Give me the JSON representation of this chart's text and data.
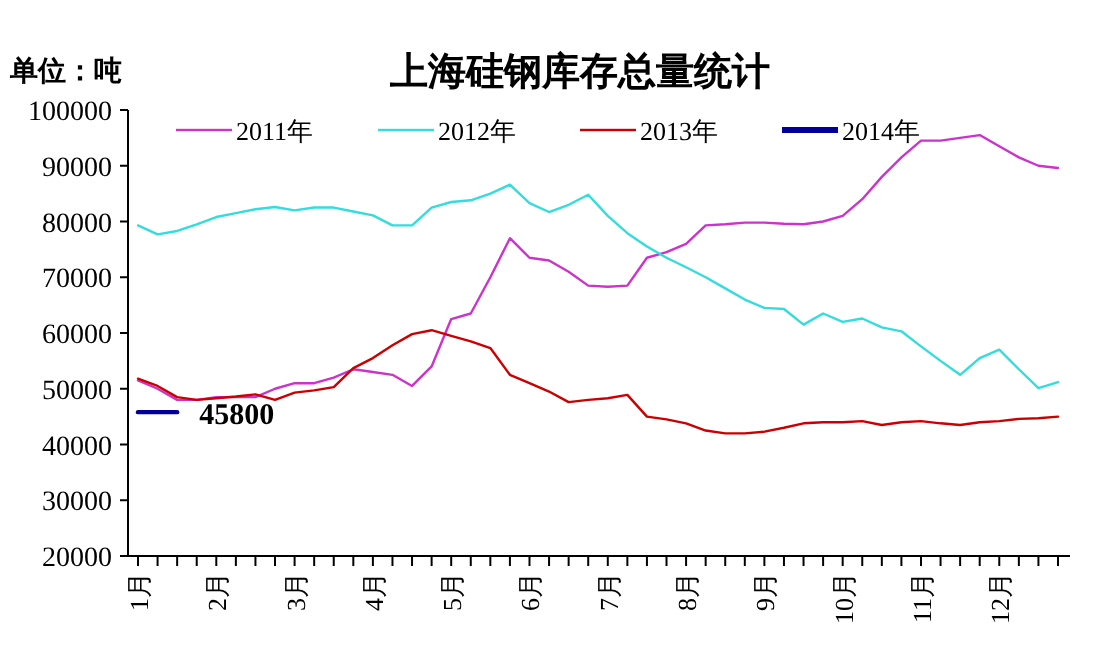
{
  "chart_data": {
    "type": "line",
    "title": "上海硅钢库存总量统计",
    "annotations": [
      "单位：吨"
    ],
    "categories": [
      "1月",
      null,
      null,
      null,
      "2月",
      null,
      null,
      null,
      "3月",
      null,
      null,
      null,
      "4月",
      null,
      null,
      null,
      "5月",
      null,
      null,
      null,
      "6月",
      null,
      null,
      null,
      "7月",
      null,
      null,
      null,
      "8月",
      null,
      null,
      null,
      "9月",
      null,
      null,
      null,
      "10月",
      null,
      null,
      null,
      "11月",
      null,
      null,
      null,
      "12月",
      null,
      null,
      null
    ],
    "series": [
      {
        "name": "2011年",
        "color": "#cc33cc",
        "values": [
          51500,
          50000,
          48000,
          48000,
          48500,
          48500,
          48500,
          50000,
          51000,
          51000,
          52000,
          53500,
          53000,
          52500,
          50500,
          54000,
          62500,
          63500,
          70000,
          77000,
          73500,
          73000,
          71000,
          68500,
          68300,
          68500,
          73500,
          74500,
          76000,
          79300,
          79500,
          79800,
          79800,
          79600,
          79500,
          80000,
          81000,
          84000,
          88000,
          91500,
          94500,
          94500,
          95000,
          95500,
          93500,
          91500,
          90000,
          89600
        ]
      },
      {
        "name": "2012年",
        "color": "#33dddd",
        "values": [
          79300,
          77700,
          78300,
          79500,
          80800,
          81500,
          82200,
          82600,
          82000,
          82500,
          82500,
          81800,
          81100,
          79300,
          79300,
          82500,
          83500,
          83800,
          85000,
          86600,
          83300,
          81700,
          83000,
          84800,
          81000,
          77900,
          75500,
          73500,
          71800,
          70000,
          68000,
          66000,
          64500,
          64300,
          61500,
          63500,
          62000,
          62600,
          61000,
          60300,
          57600,
          55000,
          52500,
          55500,
          57000,
          53500,
          50100,
          51200
        ]
      },
      {
        "name": "2013年",
        "color": "#cc0000",
        "values": [
          51800,
          50500,
          48500,
          48000,
          48300,
          48600,
          49000,
          48000,
          49300,
          49700,
          50300,
          53700,
          55500,
          57800,
          59800,
          60500,
          59500,
          58500,
          57300,
          52500,
          51000,
          49500,
          47600,
          48000,
          48300,
          48900,
          45000,
          44500,
          43800,
          42500,
          42000,
          42000,
          42300,
          43000,
          43800,
          44000,
          44000,
          44200,
          43500,
          44000,
          44200,
          43800,
          43500,
          44000,
          44200,
          44600,
          44700,
          45000
        ]
      },
      {
        "name": "2014年",
        "color": "#000099",
        "values": [
          45800,
          45800,
          45800,
          null,
          null,
          null,
          null,
          null,
          null,
          null,
          null,
          null,
          null,
          null,
          null,
          null,
          null,
          null,
          null,
          null,
          null,
          null,
          null,
          null,
          null,
          null,
          null,
          null,
          null,
          null,
          null,
          null,
          null,
          null,
          null,
          null,
          null,
          null,
          null,
          null,
          null,
          null,
          null,
          null,
          null,
          null,
          null,
          null
        ],
        "value_labels": [
          null,
          null,
          "45800",
          null,
          null,
          null,
          null,
          null,
          null,
          null,
          null,
          null,
          null,
          null,
          null,
          null,
          null,
          null,
          null,
          null,
          null,
          null,
          null,
          null,
          null,
          null,
          null,
          null,
          null,
          null,
          null,
          null,
          null,
          null,
          null,
          null,
          null,
          null,
          null,
          null,
          null,
          null,
          null,
          null,
          null,
          null,
          null,
          null
        ]
      }
    ],
    "ylim": [
      20000,
      100000
    ],
    "yticks": [
      20000,
      30000,
      40000,
      50000,
      60000,
      70000,
      80000,
      90000,
      100000
    ],
    "legend": "top",
    "grid": false
  }
}
